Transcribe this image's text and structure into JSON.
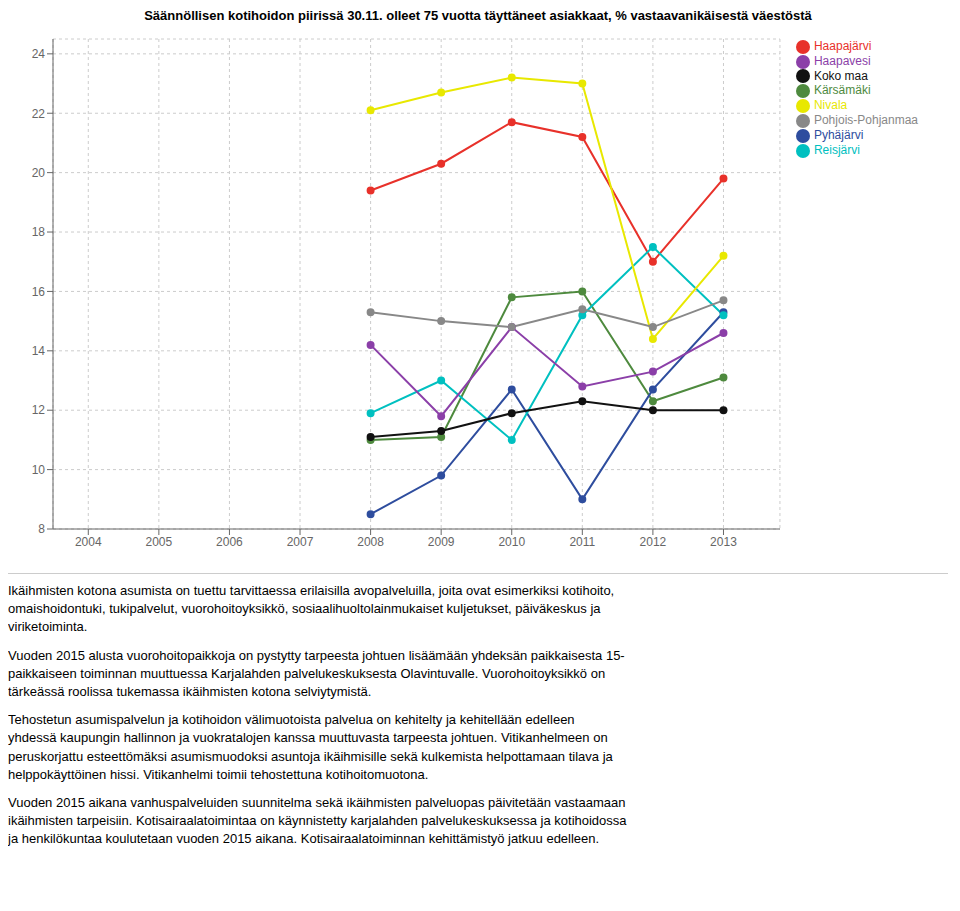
{
  "chart_data": {
    "type": "line",
    "title": "Säännöllisen kotihoidon piirissä 30.11. olleet 75 vuotta täyttäneet asiakkaat, % vastaavanikäisestä väestöstä",
    "xlim": [
      2003.5,
      2013.8
    ],
    "ylim": [
      8,
      24.5
    ],
    "xticks": [
      2004,
      2005,
      2006,
      2007,
      2008,
      2009,
      2010,
      2011,
      2012,
      2013
    ],
    "yticks": [
      8,
      10,
      12,
      14,
      16,
      18,
      20,
      22,
      24
    ],
    "grid": true,
    "legend": "right",
    "marker": "circle",
    "series": [
      {
        "name": "Haapajärvi",
        "color": "#e8312a",
        "x": [
          2008,
          2009,
          2010,
          2011,
          2012,
          2013
        ],
        "values": [
          19.4,
          20.3,
          21.7,
          21.2,
          17.0,
          19.8
        ]
      },
      {
        "name": "Kärsämäki",
        "color": "#4e8a3e",
        "x": [
          2008,
          2009,
          2010,
          2011,
          2012,
          2013
        ],
        "values": [
          11.0,
          11.1,
          15.8,
          16.0,
          12.3,
          13.1
        ]
      },
      {
        "name": "Pyhäjärvi",
        "color": "#2e4d9e",
        "x": [
          2008,
          2009,
          2010,
          2011,
          2012,
          2013
        ],
        "values": [
          8.5,
          9.8,
          12.7,
          9.0,
          12.7,
          15.3
        ]
      },
      {
        "name": "Reisjärvi",
        "color": "#00c0c0",
        "x": [
          2008,
          2009,
          2010,
          2011,
          2012,
          2013
        ],
        "values": [
          11.9,
          13.0,
          11.0,
          15.2,
          17.5,
          15.2
        ]
      },
      {
        "name": "Nivala",
        "color": "#e8e800",
        "x": [
          2008,
          2009,
          2010,
          2011,
          2012,
          2013
        ],
        "values": [
          22.1,
          22.7,
          23.2,
          23.0,
          14.4,
          17.2
        ]
      },
      {
        "name": "Haapavesi",
        "color": "#8b3fa8",
        "x": [
          2008,
          2009,
          2010,
          2011,
          2012,
          2013
        ],
        "values": [
          14.2,
          11.8,
          14.8,
          12.8,
          13.3,
          14.6
        ]
      },
      {
        "name": "Pohjois-Pohjanmaa",
        "color": "#888888",
        "x": [
          2008,
          2009,
          2010,
          2011,
          2012,
          2013
        ],
        "values": [
          15.3,
          15.0,
          14.8,
          15.4,
          14.8,
          15.7
        ]
      },
      {
        "name": "Koko maa",
        "color": "#111111",
        "x": [
          2008,
          2009,
          2010,
          2011,
          2012,
          2013
        ],
        "values": [
          11.1,
          11.3,
          11.9,
          12.3,
          12.0,
          12.0
        ]
      }
    ],
    "annotations": [
      "Ikäihmisten kotona asumista on tuettu tarvittaessa erilaisilla avopalveluilla, joita ovat esimerkiksi kotihoito,\nomaishoidontuki, tukipalvelut, vuorohoitoyksikkö, sosiaalihuoltolainmukaiset kuljetukset, päiväkeskus ja\nviriketoiminta.",
      "Vuoden 2015 alusta vuorohoitopaikkoja on pystytty tarpeesta johtuen lisäämään yhdeksän paikkaisesta 15-\npaikkaiseen toiminnan muuttuessa Karjalahden palvelukeskuksesta Olavintuvalle. Vuorohoitoyksikkö on\ntärkeässä roolissa tukemassa ikäihmisten kotona selviytymistä.",
      "Tehostetun asumispalvelun ja kotihoidon välimuotoista palvelua on kehitelty ja kehitellään edelleen\nyhdessä kaupungin hallinnon ja vuokratalojen kanssa muuttuvasta tarpeesta johtuen. Vitikanhelmeen on\nperuskorjattu esteettömäksi asumismuodoksi asuntoja ikäihmisille sekä kulkemista helpottamaan tilava ja\nhelppokäyttöinen hissi. Vitikanhelmi toimii tehostettuna kotihoitomuotona.",
      "Vuoden 2015 aikana vanhuspalveluiden suunnitelma sekä ikäihmisten palveluopas päivitetään vastaamaan\nikäihmisten tarpeisiin. Kotisairaalatoimintaa on käynnistetty karjalahden palvelukeskuksessa ja kotihoidossa\nja henkilökuntaa koulutetaan vuoden 2015 aikana. Kotisairaalatoiminnan kehittämistyö jatkuu edelleen."
    ]
  }
}
